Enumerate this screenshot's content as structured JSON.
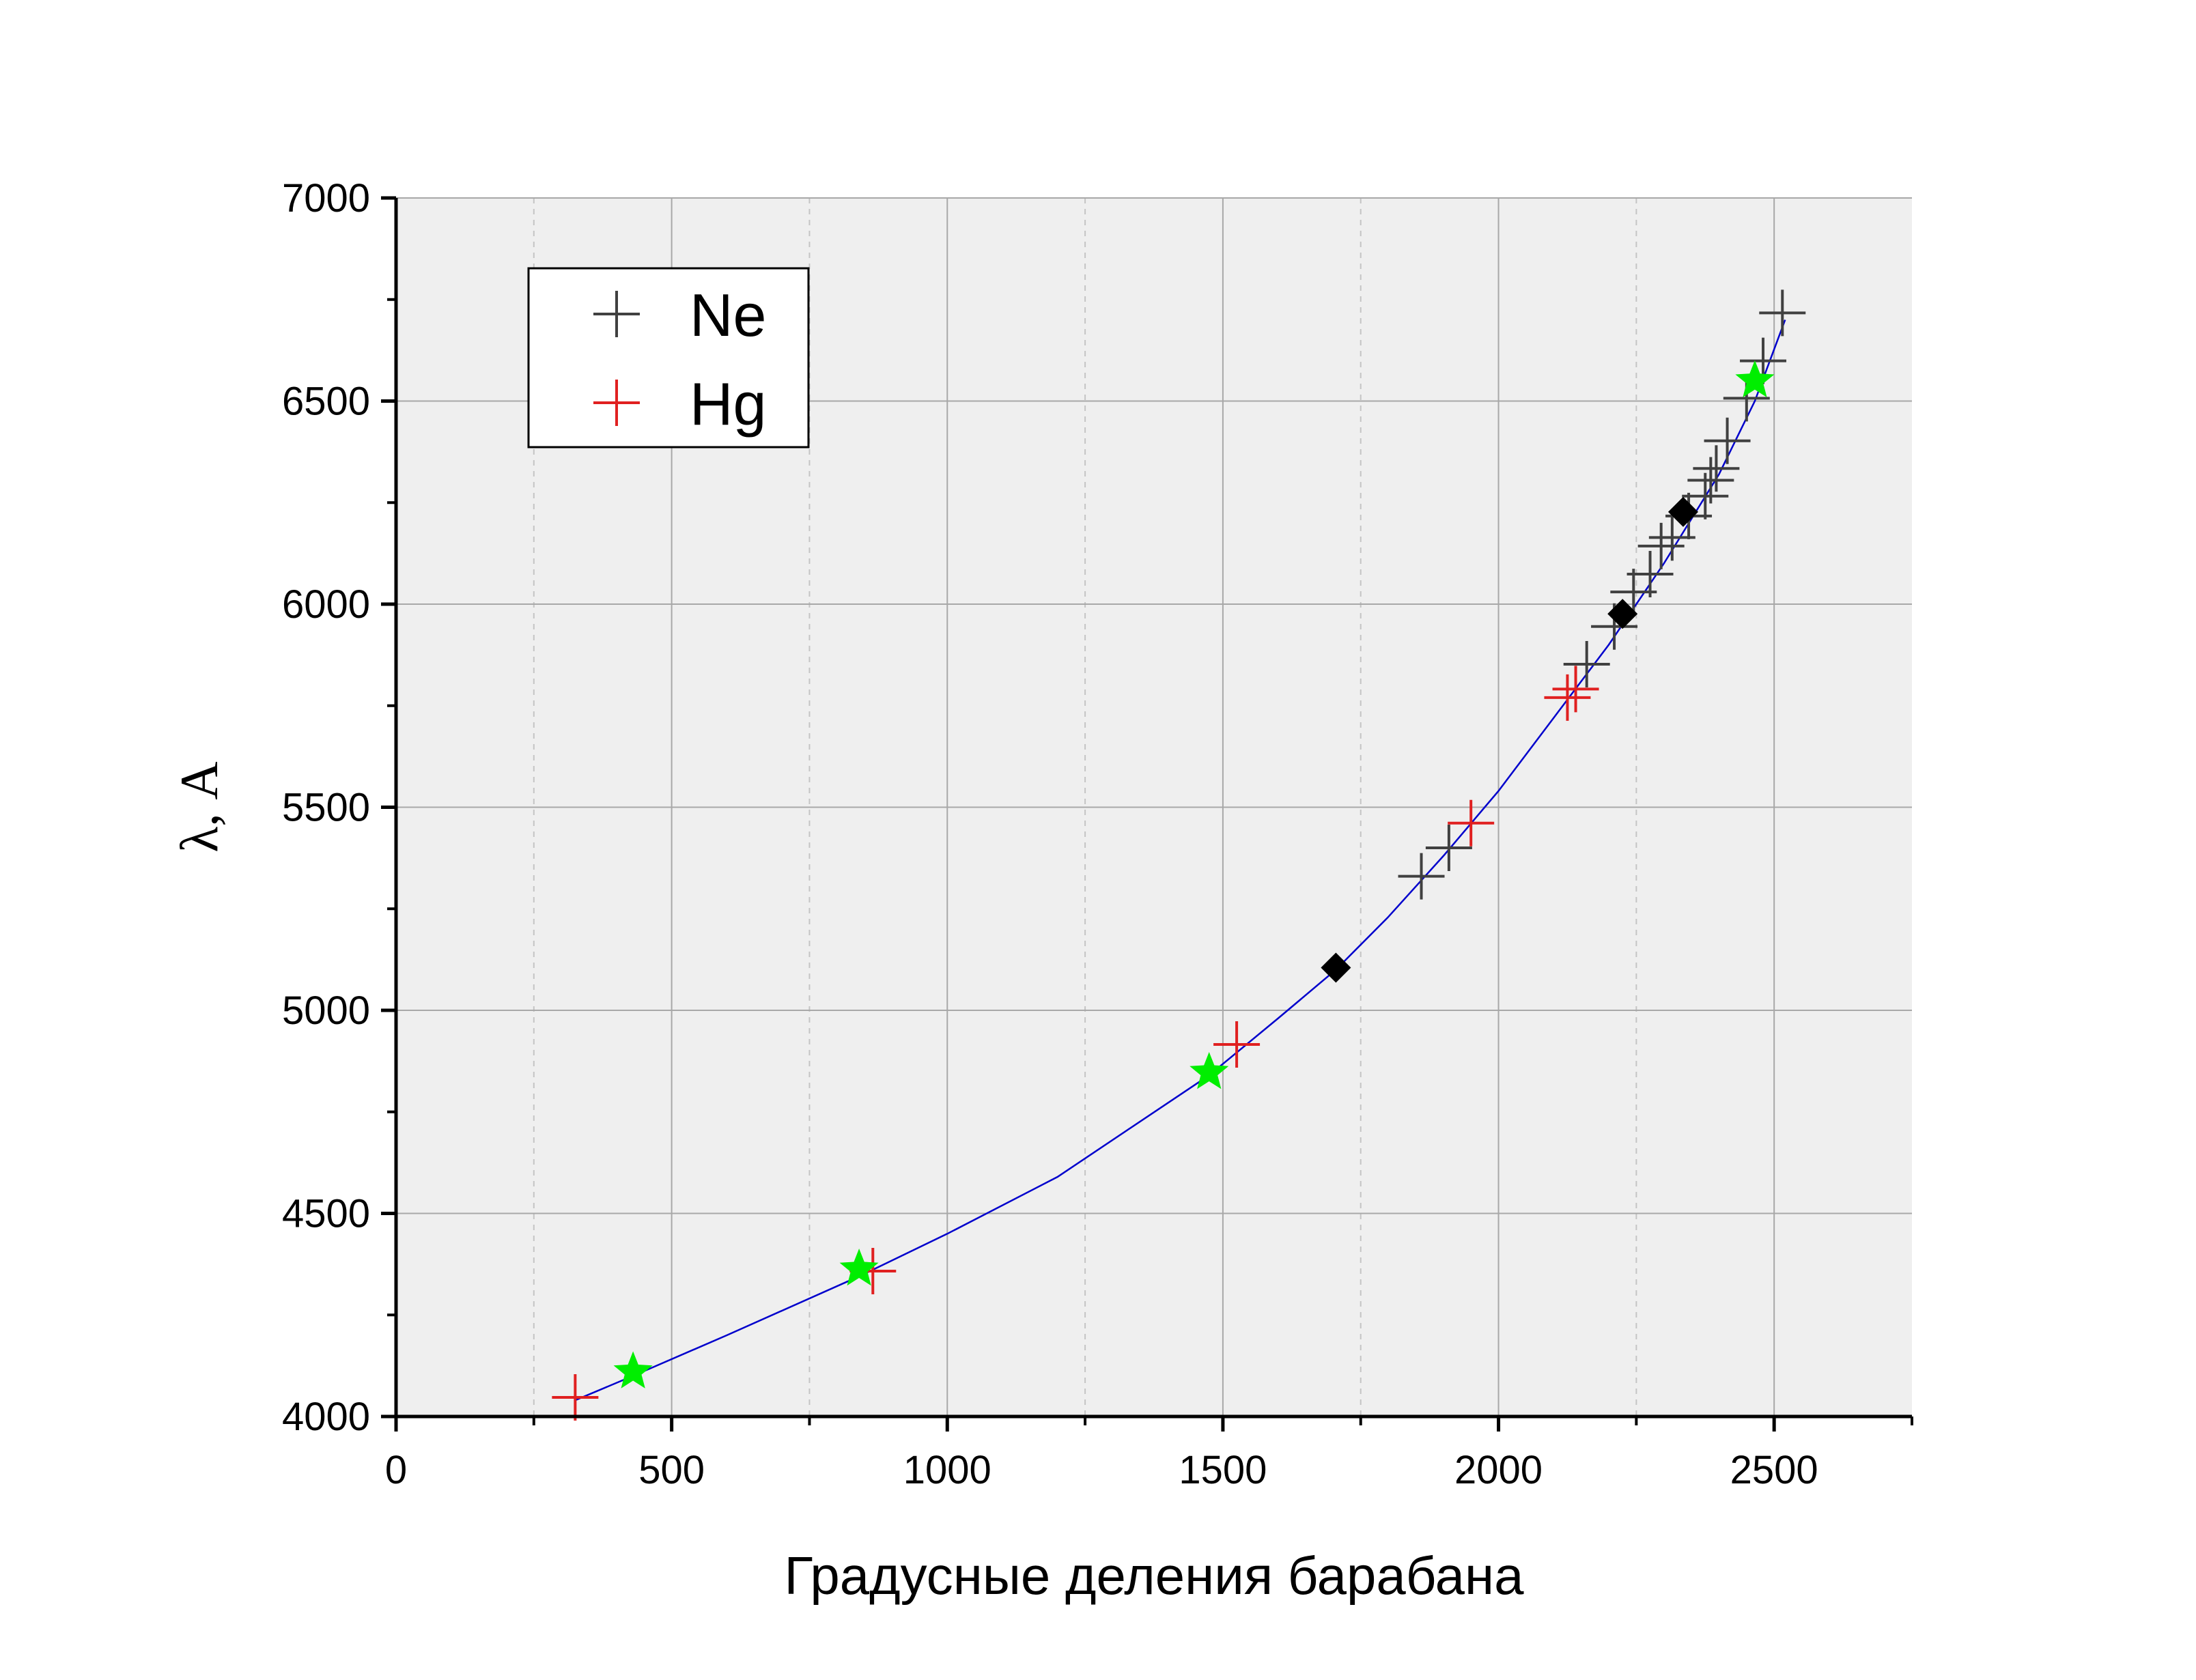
{
  "chart_data": {
    "type": "scatter",
    "title": "",
    "xlabel": "Градусные деления барабана",
    "ylabel": "λ, A",
    "xlim": [
      0,
      2750
    ],
    "ylim": [
      4000,
      7000
    ],
    "x_major_ticks": [
      0,
      500,
      1000,
      1500,
      2000,
      2500
    ],
    "x_tick_labels": [
      "0",
      "500",
      "1000",
      "1500",
      "2000",
      "2500"
    ],
    "y_major_ticks": [
      4000,
      4500,
      5000,
      5500,
      6000,
      6500,
      7000
    ],
    "y_tick_labels": [
      "4000",
      "4500",
      "5000",
      "5500",
      "6000",
      "6500",
      "7000"
    ],
    "grid": true,
    "background": "#efefef",
    "legend_position": "top-left",
    "series": [
      {
        "name": "Ne",
        "marker": "plus",
        "color": "#404040",
        "points": [
          [
            1860,
            5330
          ],
          [
            1910,
            5400
          ],
          [
            2160,
            5852
          ],
          [
            2210,
            5945
          ],
          [
            2245,
            6030
          ],
          [
            2275,
            6074
          ],
          [
            2295,
            6143
          ],
          [
            2315,
            6164
          ],
          [
            2345,
            6217
          ],
          [
            2375,
            6266
          ],
          [
            2385,
            6305
          ],
          [
            2395,
            6334
          ],
          [
            2415,
            6402
          ],
          [
            2450,
            6507
          ],
          [
            2480,
            6599
          ],
          [
            2515,
            6717
          ]
        ]
      },
      {
        "name": "Hg",
        "marker": "plus",
        "color": "#e02020",
        "points": [
          [
            325,
            4047
          ],
          [
            865,
            4358
          ],
          [
            1525,
            4916
          ],
          [
            1950,
            5461
          ],
          [
            2125,
            5770
          ],
          [
            2140,
            5791
          ]
        ]
      },
      {
        "marker": "star",
        "color": "#00ee00",
        "points": [
          [
            430,
            4110
          ],
          [
            840,
            4363
          ],
          [
            1475,
            4847
          ],
          [
            2465,
            6550
          ]
        ]
      },
      {
        "marker": "diamond",
        "color": "#000000",
        "points": [
          [
            1705,
            5105
          ],
          [
            2225,
            5976
          ],
          [
            2335,
            6227
          ]
        ]
      },
      {
        "type": "line",
        "color": "#0000cc",
        "points": [
          [
            325,
            4040
          ],
          [
            430,
            4100
          ],
          [
            600,
            4200
          ],
          [
            840,
            4345
          ],
          [
            1000,
            4450
          ],
          [
            1200,
            4590
          ],
          [
            1475,
            4840
          ],
          [
            1600,
            4980
          ],
          [
            1705,
            5100
          ],
          [
            1800,
            5230
          ],
          [
            1900,
            5380
          ],
          [
            2000,
            5540
          ],
          [
            2100,
            5720
          ],
          [
            2200,
            5900
          ],
          [
            2300,
            6100
          ],
          [
            2400,
            6320
          ],
          [
            2465,
            6500
          ],
          [
            2520,
            6700
          ]
        ]
      }
    ]
  }
}
